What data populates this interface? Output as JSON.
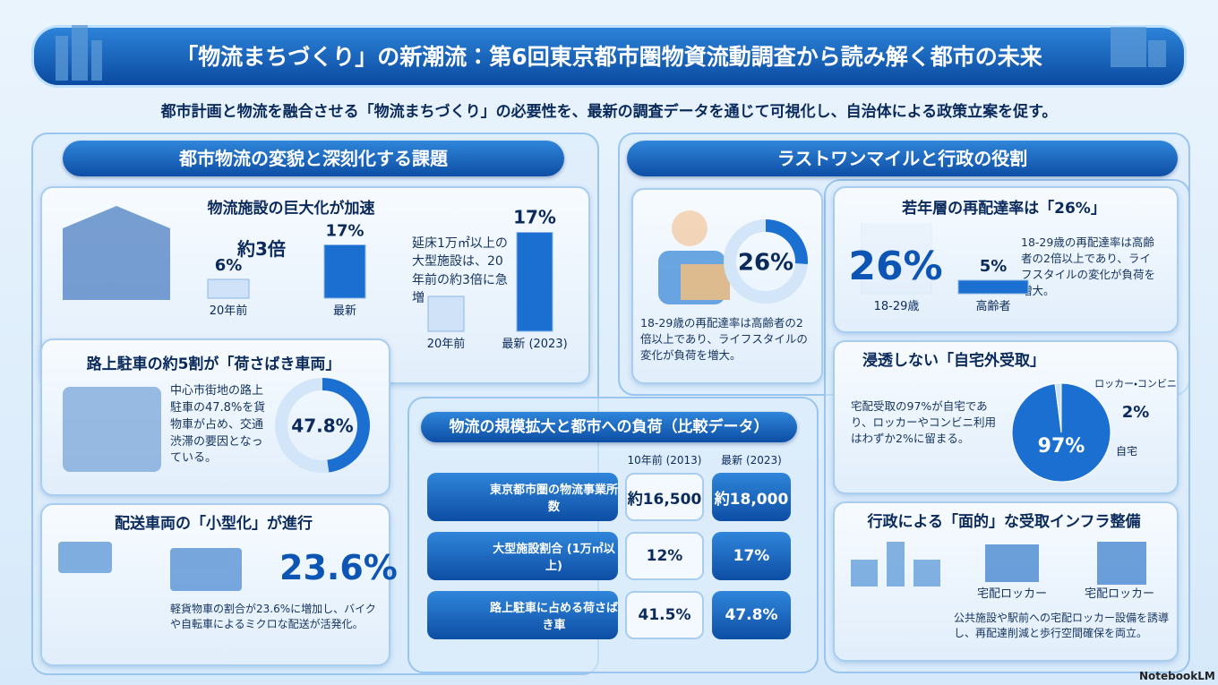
{
  "header": {
    "title": "「物流まちづくり」の新潮流：第6回東京都市圏物資流動調査から読み解く都市の未来",
    "subtitle": "都市計画と物流を融合させる「物流まちづくり」の必要性を、最新の調査データを通じて可視化し、自治体による政策立案を促す。"
  },
  "left_section": {
    "title": "都市物流の変貌と深刻化する課題",
    "facility": {
      "title": "物流施設の巨大化が加速",
      "multiplier": "約3倍",
      "bars": [
        {
          "label": "20年前",
          "value": 6,
          "value_label": "6%"
        },
        {
          "label": "最新",
          "value": 17,
          "value_label": "17%"
        }
      ],
      "note": "延床1万㎡以上の大型施設は、20年前の約3倍に急増",
      "bars2": [
        {
          "label": "20年前",
          "value": 6
        },
        {
          "label": "最新 (2023)",
          "value": 17,
          "value_label": "17%"
        }
      ]
    },
    "parking": {
      "title": "路上駐車の約5割が「荷さばき車両」",
      "text": "中心市街地の路上駐車の47.8%を貨物車が占め、交通渋滞の要因となっている。",
      "value": 47.8,
      "value_label": "47.8%"
    },
    "vehicles": {
      "title": "配送車両の「小型化」が進行",
      "value_label": "23.6%",
      "text": "軽貨物車の割合が23.6%に増加し、バイクや自転車によるミクロな配送が活発化。"
    }
  },
  "center_section": {
    "title": "物流の規模拡大と都市への負荷（比較データ）",
    "columns": [
      "10年前 (2013)",
      "最新 (2023)"
    ],
    "rows": [
      {
        "label": "東京都市圏の物流事業所数",
        "values": [
          "約16,500",
          "約18,000"
        ]
      },
      {
        "label": "大型施設割合 (1万㎡以上)",
        "values": [
          "12%",
          "17%"
        ]
      },
      {
        "label": "路上駐車に占める荷さばき車",
        "values": [
          "41.5%",
          "47.8%"
        ]
      }
    ]
  },
  "right_section": {
    "title": "ラストワンマイルと行政の役割",
    "redelivery": {
      "value": 26,
      "value_label": "26%",
      "text": "18-29歳の再配達率は高齢者の2倍以上であり、ライフスタイルの変化が負荷を増大。"
    },
    "young": {
      "title": "若年層の再配達率は「26%」",
      "bars": [
        {
          "label": "18-29歳",
          "value": 26,
          "value_label": "26%"
        },
        {
          "label": "高齢者",
          "value": 5,
          "value_label": "5%"
        }
      ],
      "text": "18-29歳の再配達率は高齢者の2倍以上であり、ライフスタイルの変化が負荷を増大。"
    },
    "pickup": {
      "title": "浸透しない「自宅外受取」",
      "text": "宅配受取の97%が自宅であり、ロッカーやコンビニ利用はわずか2%に留まる。",
      "slices": [
        {
          "label": "自宅",
          "value": 97,
          "value_label": "97%"
        },
        {
          "label": "ロッカー・コンビニ",
          "value": 2,
          "value_label": "2%"
        }
      ]
    },
    "infra": {
      "title": "行政による「面的」な受取インフラ整備",
      "icons": [
        "宅配ロッカー",
        "宅配ロッカー"
      ],
      "text": "公共施設や駅前への宅配ロッカー設備を誘導し、再配達削減と歩行空間確保を両立。"
    }
  },
  "footer": {
    "brand": "NotebookLM"
  }
}
